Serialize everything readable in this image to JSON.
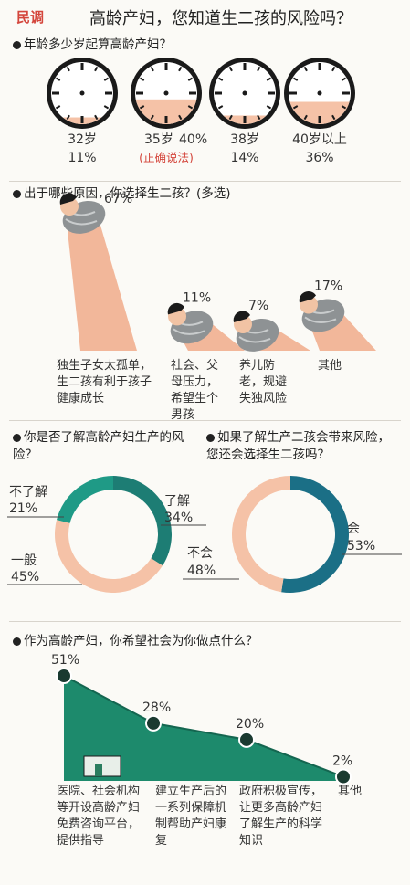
{
  "header": {
    "tag": "民调",
    "title": "高龄产妇，您知道生二孩的风险吗？"
  },
  "q1": {
    "question": "年龄多少岁起算高龄产妇？",
    "items": [
      {
        "age": "32岁",
        "pct": "11%",
        "value": 11,
        "note": ""
      },
      {
        "age": "35岁",
        "pct": "40%",
        "value": 40,
        "note": "(正确说法)"
      },
      {
        "age": "38岁",
        "pct": "14%",
        "value": 14,
        "note": ""
      },
      {
        "age": "40岁以上",
        "pct": "36%",
        "value": 36,
        "note": ""
      }
    ]
  },
  "q2": {
    "question": "出于哪些原因，你选择生二孩？(多选)",
    "items": [
      {
        "pct": "67%",
        "value": 67,
        "label": "独生子女太孤单，生二孩有利于孩子健康成长"
      },
      {
        "pct": "11%",
        "value": 11,
        "label": "社会、父母压力，希望生个男孩"
      },
      {
        "pct": "7%",
        "value": 7,
        "label": "养儿防老，规避失独风险"
      },
      {
        "pct": "17%",
        "value": 17,
        "label": "其他"
      }
    ]
  },
  "q3": {
    "question": "你是否了解高龄产妇生产的风险？",
    "slices": [
      {
        "label": "了解",
        "pct": "34%",
        "value": 34,
        "color": "#1d7d74"
      },
      {
        "label": "一般",
        "pct": "45%",
        "value": 45,
        "color": "#f5c2a7"
      },
      {
        "label": "不了解",
        "pct": "21%",
        "value": 21,
        "color": "#1f9a86"
      }
    ]
  },
  "q4": {
    "question": "如果了解生产二孩会带来风险，您还会选择生二孩吗？",
    "slices": [
      {
        "label": "会",
        "pct": "53%",
        "value": 53,
        "color": "#1b6f86"
      },
      {
        "label": "不会",
        "pct": "48%",
        "value": 48,
        "color": "#f5c2a7"
      }
    ]
  },
  "q5": {
    "question": "作为高龄产妇，你希望社会为你做点什么？",
    "items": [
      {
        "pct": "51%",
        "value": 51,
        "label": "医院、社会机构等开设高龄产妇免费咨询平台，提供指导"
      },
      {
        "pct": "28%",
        "value": 28,
        "label": "建立生产后的一系列保障机制帮助产妇康复"
      },
      {
        "pct": "20%",
        "value": 20,
        "label": "政府积极宣传，让更多高龄产妇了解生产的科学知识"
      },
      {
        "pct": "2%",
        "value": 2,
        "label": "其他"
      }
    ]
  },
  "colors": {
    "accent": "#d4463c",
    "salmon": "#f5c2a7",
    "teal": "#1d8a74",
    "dark": "#1b1b1b"
  },
  "chart_data": [
    {
      "type": "bar",
      "title": "年龄多少岁起算高龄产妇？",
      "categories": [
        "32岁",
        "35岁",
        "38岁",
        "40岁以上"
      ],
      "values": [
        11,
        40,
        14,
        36
      ]
    },
    {
      "type": "bar",
      "title": "出于哪些原因，你选择生二孩？(多选)",
      "categories": [
        "独生子女太孤单，生二孩有利于孩子健康成长",
        "社会、父母压力，希望生个男孩",
        "养儿防老，规避失独风险",
        "其他"
      ],
      "values": [
        67,
        11,
        7,
        17
      ]
    },
    {
      "type": "pie",
      "title": "你是否了解高龄产妇生产的风险？",
      "categories": [
        "了解",
        "一般",
        "不了解"
      ],
      "values": [
        34,
        45,
        21
      ]
    },
    {
      "type": "pie",
      "title": "如果了解生产二孩会带来风险，您还会选择生二孩吗？",
      "categories": [
        "会",
        "不会"
      ],
      "values": [
        53,
        48
      ]
    },
    {
      "type": "area",
      "title": "作为高龄产妇，你希望社会为你做点什么？",
      "categories": [
        "医院、社会机构等开设高龄产妇免费咨询平台，提供指导",
        "建立生产后的一系列保障机制帮助产妇康复",
        "政府积极宣传，让更多高龄产妇了解生产的科学知识",
        "其他"
      ],
      "values": [
        51,
        28,
        20,
        2
      ]
    }
  ]
}
